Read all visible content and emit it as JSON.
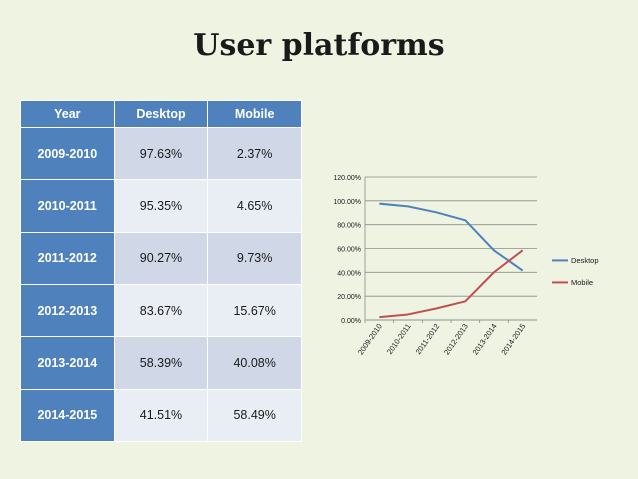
{
  "slide": {
    "title": "User platforms"
  },
  "table": {
    "headers": [
      "Year",
      "Desktop",
      "Mobile"
    ],
    "rows": [
      [
        "2009-2010",
        "97.63%",
        "2.37%"
      ],
      [
        "2010-2011",
        "95.35%",
        "4.65%"
      ],
      [
        "2011-2012",
        "90.27%",
        "9.73%"
      ],
      [
        "2012-2013",
        "83.67%",
        "15.67%"
      ],
      [
        "2013-2014",
        "58.39%",
        "40.08%"
      ],
      [
        "2014-2015",
        "41.51%",
        "58.49%"
      ]
    ]
  },
  "chart_data": {
    "type": "line",
    "title": "",
    "xlabel": "",
    "ylabel": "",
    "categories": [
      "2009-2010",
      "2010-2011",
      "2011-2012",
      "2012-2013",
      "2013-2014",
      "2014-2015"
    ],
    "series": [
      {
        "name": "Desktop",
        "values": [
          97.63,
          95.35,
          90.27,
          83.67,
          58.39,
          41.51
        ],
        "color": "#4f81bd"
      },
      {
        "name": "Mobile",
        "values": [
          2.37,
          4.65,
          9.73,
          15.67,
          40.08,
          58.49
        ],
        "color": "#c0504d"
      }
    ],
    "ylim": [
      0,
      120
    ],
    "yticks": [
      0,
      20,
      40,
      60,
      80,
      100,
      120
    ],
    "ytick_labels": [
      "0.00%",
      "20.00%",
      "40.00%",
      "60.00%",
      "80.00%",
      "100.00%",
      "120.00%"
    ],
    "grid": true,
    "legend": "right"
  }
}
